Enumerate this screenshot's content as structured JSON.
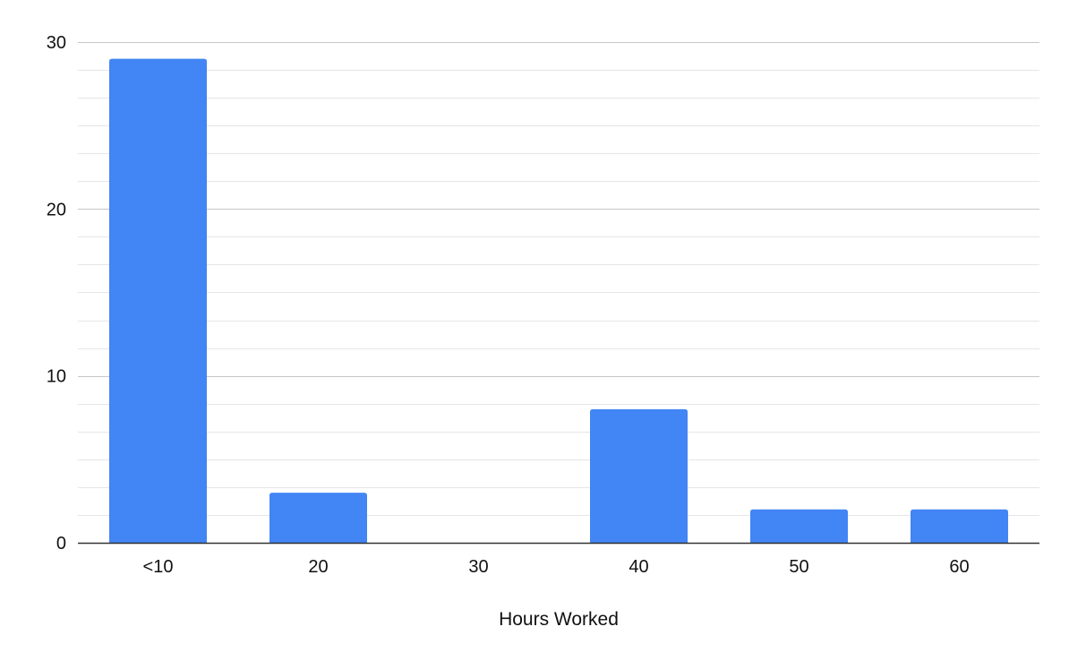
{
  "chart_data": {
    "type": "bar",
    "categories": [
      "<10",
      "20",
      "30",
      "40",
      "50",
      "60"
    ],
    "values": [
      29,
      3,
      0,
      8,
      2,
      2
    ],
    "title": "",
    "xlabel": "Hours Worked",
    "ylabel": "",
    "ylim": [
      0,
      30
    ],
    "yticks": [
      0,
      10,
      20,
      30
    ],
    "minor_grid_step": 1.6667,
    "grid": true,
    "legend": "none",
    "colors": {
      "bar": "#4285f4",
      "major_grid": "#c6c6c6",
      "minor_grid": "#e6e6e6",
      "baseline": "#333333"
    }
  }
}
